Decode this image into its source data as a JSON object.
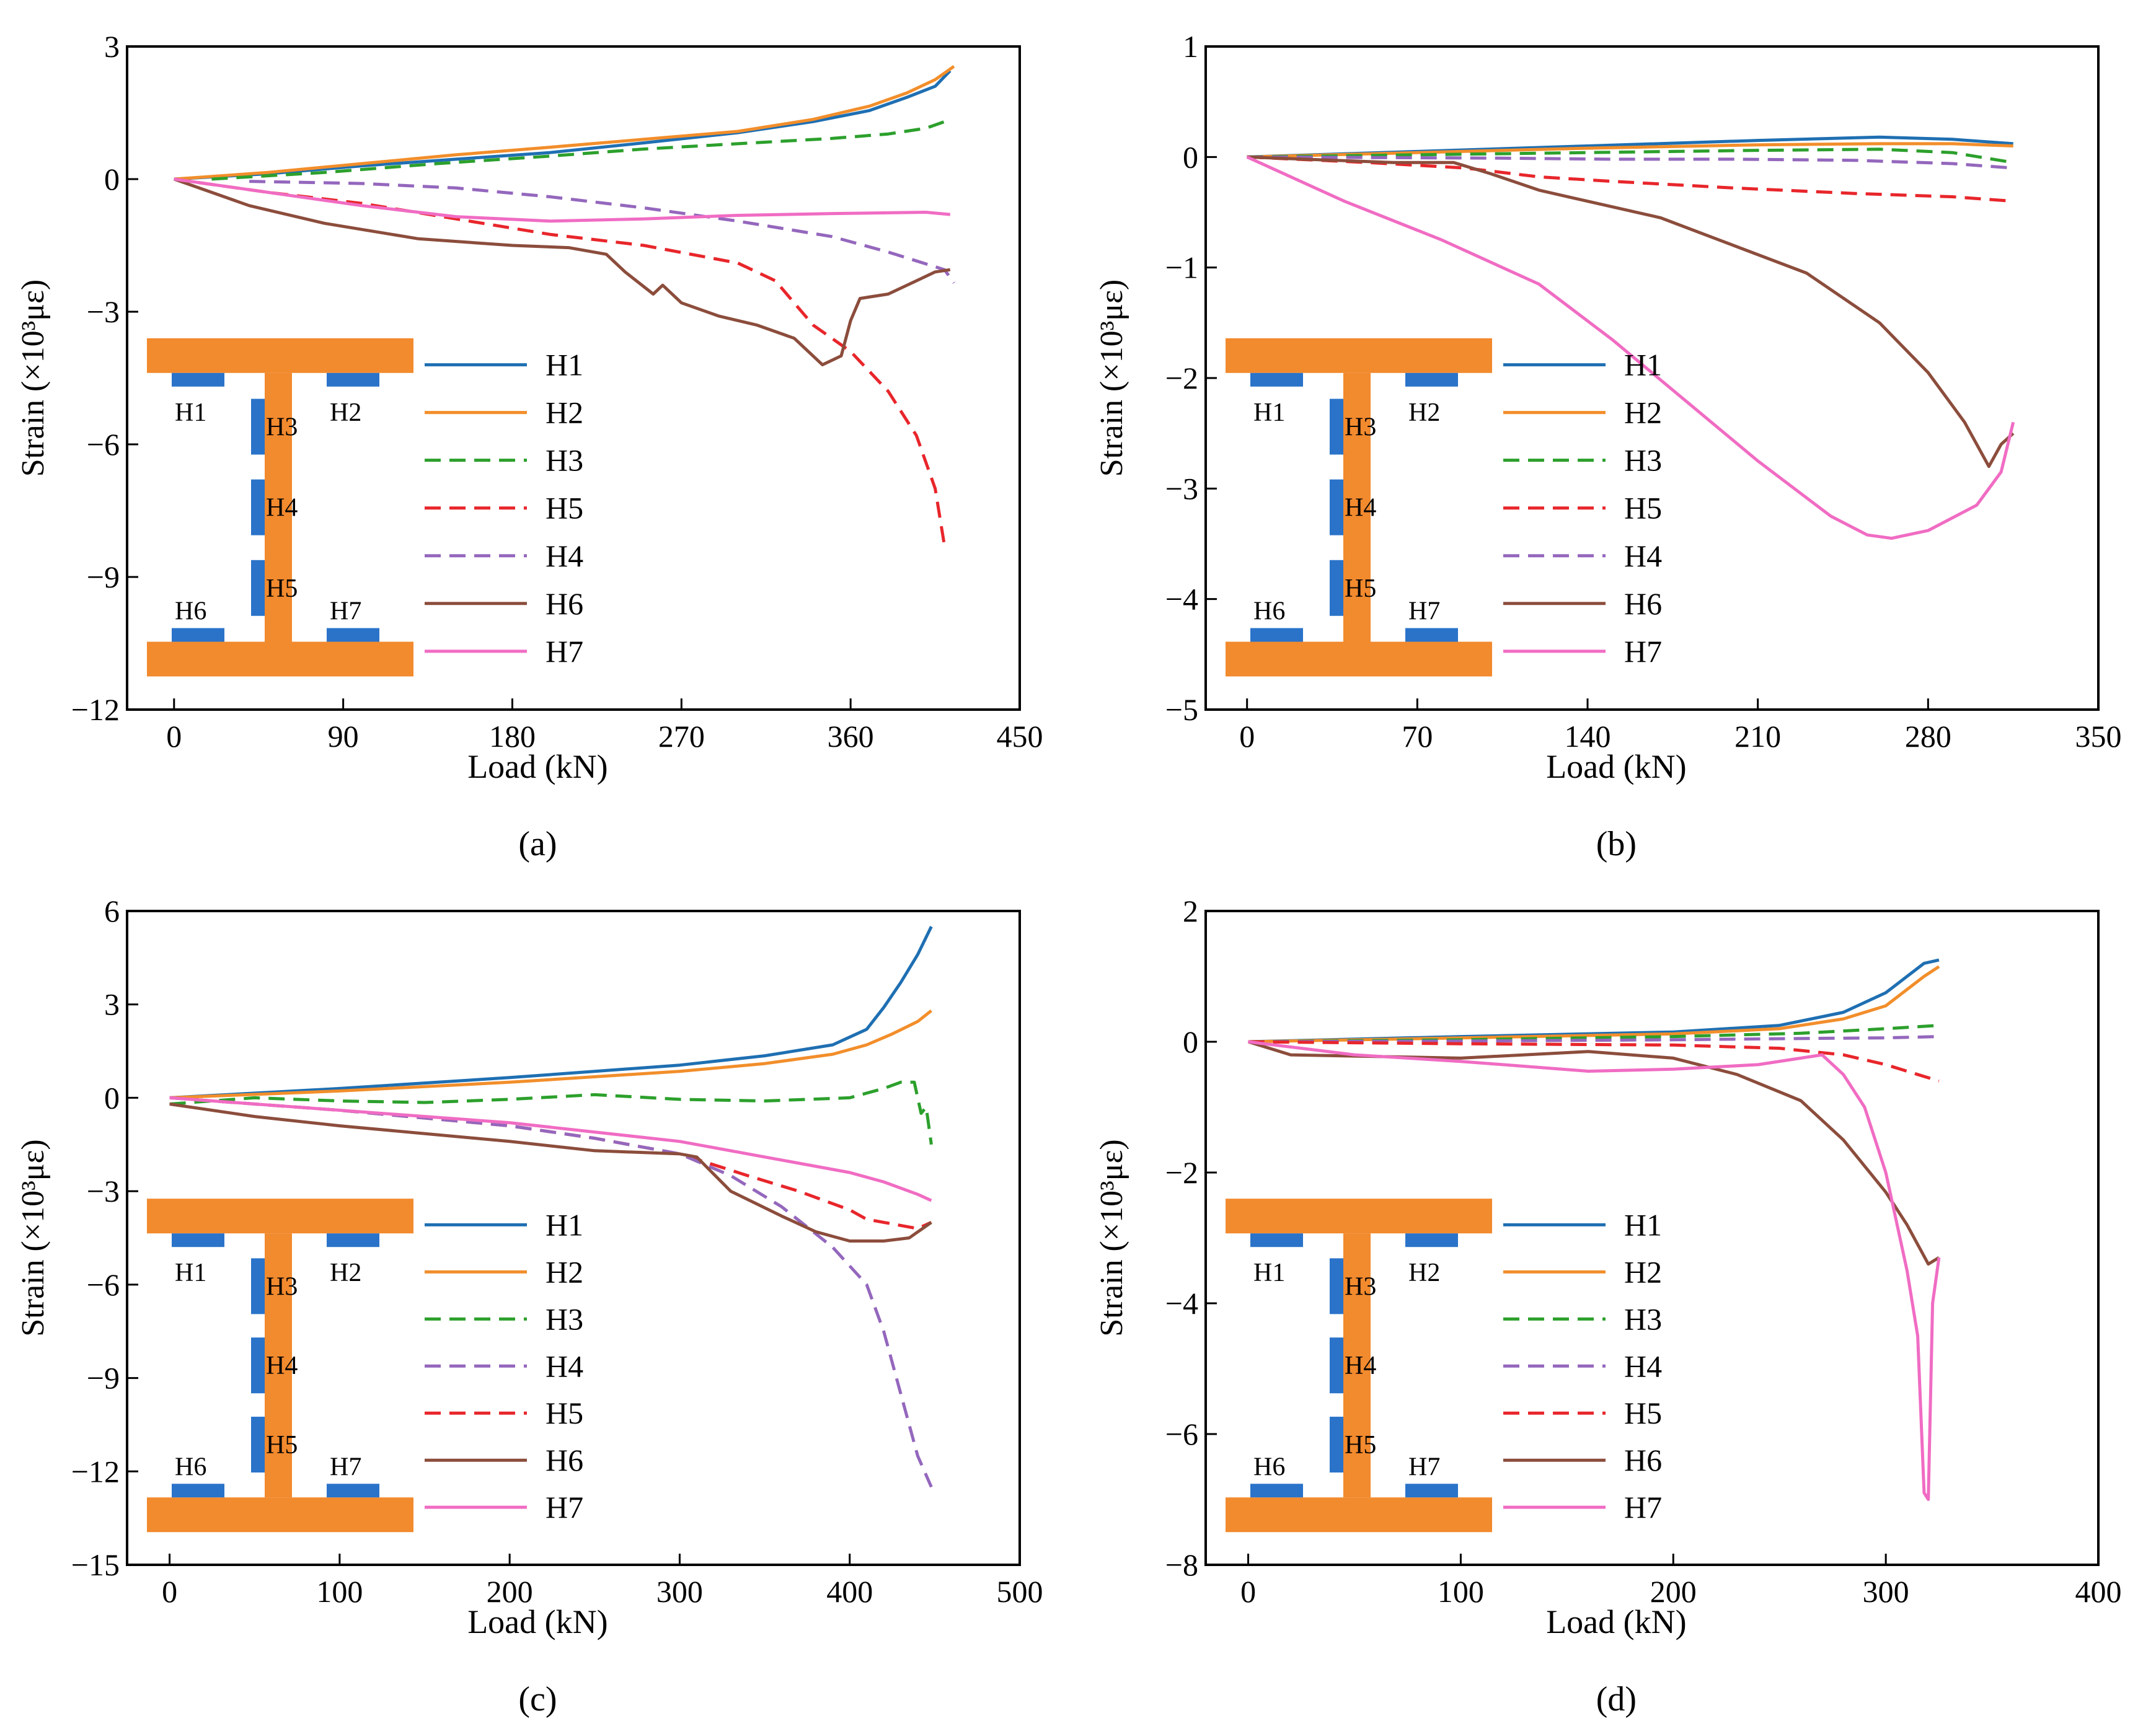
{
  "figure": {
    "background": "#ffffff"
  },
  "styles": {
    "H1": {
      "color": "#1f6fb2",
      "dash": "solid"
    },
    "H2": {
      "color": "#f28e2b",
      "dash": "solid"
    },
    "H3": {
      "color": "#2ca02c",
      "dash": "dashed"
    },
    "H4": {
      "color": "#9467bd",
      "dash": "dashed"
    },
    "H5": {
      "color": "#e8262b",
      "dash": "dashed"
    },
    "H6": {
      "color": "#8c4d3c",
      "dash": "solid"
    },
    "H7": {
      "color": "#f06cc3",
      "dash": "solid"
    }
  },
  "inset_colors": {
    "steel": "#f28a2e",
    "gauge": "#2a73c9"
  },
  "chart_data": [
    {
      "panel_label": "(a)",
      "type": "line",
      "xlabel": "Load (kN)",
      "ylabel": "Strain (×10³με)",
      "xlim": [
        -25,
        450
      ],
      "ylim": [
        -12,
        3
      ],
      "xticks": [
        0,
        90,
        180,
        270,
        360,
        450
      ],
      "yticks": [
        -12,
        -9,
        -6,
        -3,
        0,
        3
      ],
      "legend": [
        "H1",
        "H2",
        "H3",
        "H5",
        "H4",
        "H6",
        "H7"
      ],
      "inset_labels": {
        "top_left": "H1",
        "top_right": "H2",
        "web_upper": "H3",
        "web_mid": "H4",
        "web_lower": "H5",
        "bottom_left": "H6",
        "bottom_right": "H7"
      },
      "series": [
        {
          "name": "H1",
          "x": [
            0,
            50,
            100,
            150,
            200,
            250,
            300,
            340,
            370,
            390,
            405,
            413
          ],
          "y": [
            0,
            0.12,
            0.3,
            0.45,
            0.6,
            0.82,
            1.05,
            1.3,
            1.55,
            1.85,
            2.1,
            2.45
          ]
        },
        {
          "name": "H2",
          "x": [
            0,
            50,
            100,
            150,
            200,
            250,
            300,
            340,
            370,
            390,
            405,
            415
          ],
          "y": [
            0,
            0.15,
            0.35,
            0.55,
            0.72,
            0.9,
            1.08,
            1.35,
            1.65,
            1.95,
            2.25,
            2.55
          ]
        },
        {
          "name": "H3",
          "x": [
            20,
            80,
            140,
            200,
            250,
            300,
            350,
            380,
            400,
            410
          ],
          "y": [
            0,
            0.15,
            0.35,
            0.52,
            0.68,
            0.8,
            0.92,
            1.02,
            1.15,
            1.3
          ]
        },
        {
          "name": "H5",
          "x": [
            0,
            50,
            100,
            150,
            200,
            250,
            300,
            320,
            340,
            360,
            380,
            395,
            405,
            410
          ],
          "y": [
            0,
            -0.3,
            -0.55,
            -0.9,
            -1.25,
            -1.5,
            -1.9,
            -2.3,
            -3.3,
            -3.9,
            -4.8,
            -5.8,
            -7.0,
            -8.3
          ]
        },
        {
          "name": "H4",
          "x": [
            40,
            100,
            150,
            200,
            250,
            300,
            350,
            380,
            410,
            415
          ],
          "y": [
            -0.05,
            -0.1,
            -0.2,
            -0.4,
            -0.65,
            -0.95,
            -1.3,
            -1.65,
            -2.05,
            -2.35
          ]
        },
        {
          "name": "H6",
          "x": [
            0,
            40,
            80,
            130,
            180,
            210,
            230,
            240,
            255,
            260,
            270,
            290,
            310,
            330,
            345,
            355,
            360,
            365,
            380,
            395,
            405,
            413
          ],
          "y": [
            0,
            -0.6,
            -1.0,
            -1.35,
            -1.5,
            -1.55,
            -1.7,
            -2.1,
            -2.6,
            -2.4,
            -2.8,
            -3.1,
            -3.3,
            -3.6,
            -4.2,
            -4.0,
            -3.2,
            -2.7,
            -2.6,
            -2.3,
            -2.1,
            -2.05
          ]
        },
        {
          "name": "H7",
          "x": [
            0,
            50,
            100,
            150,
            200,
            250,
            300,
            350,
            400,
            413
          ],
          "y": [
            0,
            -0.3,
            -0.6,
            -0.85,
            -0.95,
            -0.9,
            -0.82,
            -0.78,
            -0.75,
            -0.8
          ]
        }
      ]
    },
    {
      "panel_label": "(b)",
      "type": "line",
      "xlabel": "Load (kN)",
      "ylabel": "Strain (×10³με)",
      "xlim": [
        -17,
        350
      ],
      "ylim": [
        -5,
        1
      ],
      "xticks": [
        0,
        70,
        140,
        210,
        280,
        350
      ],
      "yticks": [
        -5,
        -4,
        -3,
        -2,
        -1,
        0,
        1
      ],
      "legend": [
        "H1",
        "H2",
        "H3",
        "H5",
        "H4",
        "H6",
        "H7"
      ],
      "inset_labels": {
        "top_left": "H1",
        "top_right": "H2",
        "web_upper": "H3",
        "web_mid": "H4",
        "web_lower": "H5",
        "bottom_left": "H6",
        "bottom_right": "H7"
      },
      "series": [
        {
          "name": "H1",
          "x": [
            0,
            70,
            140,
            210,
            260,
            290,
            315
          ],
          "y": [
            0,
            0.05,
            0.1,
            0.15,
            0.18,
            0.16,
            0.12
          ]
        },
        {
          "name": "H2",
          "x": [
            0,
            70,
            140,
            210,
            260,
            290,
            315
          ],
          "y": [
            0,
            0.04,
            0.08,
            0.11,
            0.12,
            0.12,
            0.1
          ]
        },
        {
          "name": "H3",
          "x": [
            0,
            70,
            140,
            210,
            260,
            290,
            315
          ],
          "y": [
            0,
            0.02,
            0.04,
            0.06,
            0.07,
            0.04,
            -0.05
          ]
        },
        {
          "name": "H5",
          "x": [
            0,
            50,
            90,
            120,
            150,
            200,
            250,
            290,
            315
          ],
          "y": [
            0,
            -0.05,
            -0.1,
            -0.18,
            -0.22,
            -0.28,
            -0.33,
            -0.36,
            -0.4
          ]
        },
        {
          "name": "H4",
          "x": [
            0,
            100,
            150,
            200,
            250,
            290,
            315
          ],
          "y": [
            0,
            -0.01,
            -0.02,
            -0.02,
            -0.03,
            -0.06,
            -0.1
          ]
        },
        {
          "name": "H6",
          "x": [
            0,
            60,
            85,
            100,
            120,
            140,
            170,
            200,
            230,
            260,
            280,
            295,
            305,
            310,
            315
          ],
          "y": [
            0,
            -0.05,
            -0.05,
            -0.15,
            -0.3,
            -0.4,
            -0.55,
            -0.8,
            -1.05,
            -1.5,
            -1.95,
            -2.4,
            -2.8,
            -2.6,
            -2.5
          ]
        },
        {
          "name": "H7",
          "x": [
            0,
            40,
            80,
            120,
            150,
            180,
            210,
            240,
            255,
            265,
            280,
            300,
            310,
            315
          ],
          "y": [
            0,
            -0.4,
            -0.75,
            -1.15,
            -1.65,
            -2.2,
            -2.75,
            -3.25,
            -3.42,
            -3.45,
            -3.38,
            -3.15,
            -2.85,
            -2.4
          ]
        }
      ]
    },
    {
      "panel_label": "(c)",
      "type": "line",
      "xlabel": "Load (kN)",
      "ylabel": "Strain (×10³με)",
      "xlim": [
        -25,
        500
      ],
      "ylim": [
        -15,
        6
      ],
      "xticks": [
        0,
        100,
        200,
        300,
        400,
        500
      ],
      "yticks": [
        -15,
        -12,
        -9,
        -6,
        -3,
        0,
        3,
        6
      ],
      "legend": [
        "H1",
        "H2",
        "H3",
        "H4",
        "H5",
        "H6",
        "H7"
      ],
      "inset_labels": {
        "top_left": "H1",
        "top_right": "H2",
        "web_upper": "H3",
        "web_mid": "H4",
        "web_lower": "H5",
        "bottom_left": "H6",
        "bottom_right": "H7"
      },
      "series": [
        {
          "name": "H1",
          "x": [
            0,
            100,
            200,
            300,
            350,
            390,
            410,
            420,
            430,
            440,
            448
          ],
          "y": [
            0,
            0.3,
            0.65,
            1.05,
            1.35,
            1.7,
            2.2,
            2.9,
            3.7,
            4.6,
            5.5
          ]
        },
        {
          "name": "H2",
          "x": [
            0,
            100,
            200,
            300,
            350,
            390,
            410,
            425,
            440,
            448
          ],
          "y": [
            0,
            0.22,
            0.5,
            0.85,
            1.1,
            1.4,
            1.7,
            2.05,
            2.45,
            2.8
          ]
        },
        {
          "name": "H3",
          "x": [
            0,
            50,
            100,
            150,
            200,
            250,
            300,
            350,
            400,
            420,
            430,
            438,
            442,
            445,
            448
          ],
          "y": [
            -0.2,
            0,
            -0.1,
            -0.15,
            -0.05,
            0.1,
            -0.05,
            -0.1,
            0,
            0.3,
            0.5,
            0.5,
            -0.5,
            -0.3,
            -1.5
          ]
        },
        {
          "name": "H5",
          "x": [
            0,
            100,
            200,
            250,
            300,
            340,
            370,
            400,
            410,
            420,
            430,
            440,
            448
          ],
          "y": [
            0,
            -0.4,
            -0.9,
            -1.3,
            -1.8,
            -2.5,
            -3.0,
            -3.6,
            -3.9,
            -4.0,
            -4.1,
            -4.2,
            -4.0
          ]
        },
        {
          "name": "H4",
          "x": [
            0,
            100,
            200,
            250,
            300,
            330,
            360,
            390,
            410,
            420,
            430,
            440,
            448
          ],
          "y": [
            0,
            -0.4,
            -0.9,
            -1.3,
            -1.8,
            -2.5,
            -3.5,
            -4.8,
            -6.0,
            -7.5,
            -9.5,
            -11.5,
            -12.5
          ]
        },
        {
          "name": "H6",
          "x": [
            0,
            50,
            100,
            200,
            250,
            300,
            310,
            330,
            360,
            380,
            400,
            420,
            435,
            448
          ],
          "y": [
            -0.2,
            -0.6,
            -0.9,
            -1.4,
            -1.7,
            -1.8,
            -1.9,
            -3.0,
            -3.8,
            -4.3,
            -4.6,
            -4.6,
            -4.5,
            -4.0
          ]
        },
        {
          "name": "H7",
          "x": [
            0,
            100,
            200,
            300,
            350,
            400,
            420,
            440,
            448
          ],
          "y": [
            0,
            -0.4,
            -0.8,
            -1.4,
            -1.9,
            -2.4,
            -2.7,
            -3.1,
            -3.3
          ]
        }
      ]
    },
    {
      "panel_label": "(d)",
      "type": "line",
      "xlabel": "Load (kN)",
      "ylabel": "Strain (×10³με)",
      "xlim": [
        -20,
        400
      ],
      "ylim": [
        -8,
        2
      ],
      "xticks": [
        0,
        100,
        200,
        300,
        400
      ],
      "yticks": [
        -8,
        -6,
        -4,
        -2,
        0,
        2
      ],
      "legend": [
        "H1",
        "H2",
        "H3",
        "H4",
        "H5",
        "H6",
        "H7"
      ],
      "inset_labels": {
        "top_left": "H1",
        "top_right": "H2",
        "web_upper": "H3",
        "web_mid": "H4",
        "web_lower": "H5",
        "bottom_left": "H6",
        "bottom_right": "H7"
      },
      "series": [
        {
          "name": "H1",
          "x": [
            0,
            100,
            200,
            250,
            280,
            300,
            310,
            318,
            325
          ],
          "y": [
            0,
            0.08,
            0.15,
            0.25,
            0.45,
            0.75,
            1.0,
            1.2,
            1.25
          ]
        },
        {
          "name": "H2",
          "x": [
            0,
            100,
            200,
            250,
            280,
            300,
            310,
            318,
            325
          ],
          "y": [
            0,
            0.06,
            0.12,
            0.2,
            0.35,
            0.55,
            0.8,
            1.0,
            1.15
          ]
        },
        {
          "name": "H3",
          "x": [
            0,
            100,
            200,
            260,
            300,
            325
          ],
          "y": [
            0,
            0.03,
            0.08,
            0.13,
            0.2,
            0.25
          ]
        },
        {
          "name": "H4",
          "x": [
            0,
            100,
            200,
            260,
            300,
            325
          ],
          "y": [
            0,
            0.01,
            0.03,
            0.05,
            0.06,
            0.08
          ]
        },
        {
          "name": "H5",
          "x": [
            0,
            100,
            200,
            250,
            280,
            300,
            315,
            325
          ],
          "y": [
            0,
            -0.03,
            -0.05,
            -0.1,
            -0.2,
            -0.35,
            -0.5,
            -0.6
          ]
        },
        {
          "name": "H6",
          "x": [
            0,
            20,
            100,
            160,
            200,
            230,
            260,
            280,
            300,
            310,
            320,
            325
          ],
          "y": [
            0,
            -0.2,
            -0.25,
            -0.15,
            -0.25,
            -0.5,
            -0.9,
            -1.5,
            -2.3,
            -2.8,
            -3.4,
            -3.3
          ]
        },
        {
          "name": "H7",
          "x": [
            0,
            50,
            100,
            160,
            200,
            240,
            260,
            270,
            280,
            290,
            300,
            310,
            315,
            318,
            320,
            322,
            325
          ],
          "y": [
            0,
            -0.2,
            -0.3,
            -0.45,
            -0.42,
            -0.35,
            -0.25,
            -0.2,
            -0.5,
            -1.0,
            -2.0,
            -3.5,
            -4.5,
            -6.9,
            -7.0,
            -4.0,
            -3.3
          ]
        }
      ]
    }
  ]
}
